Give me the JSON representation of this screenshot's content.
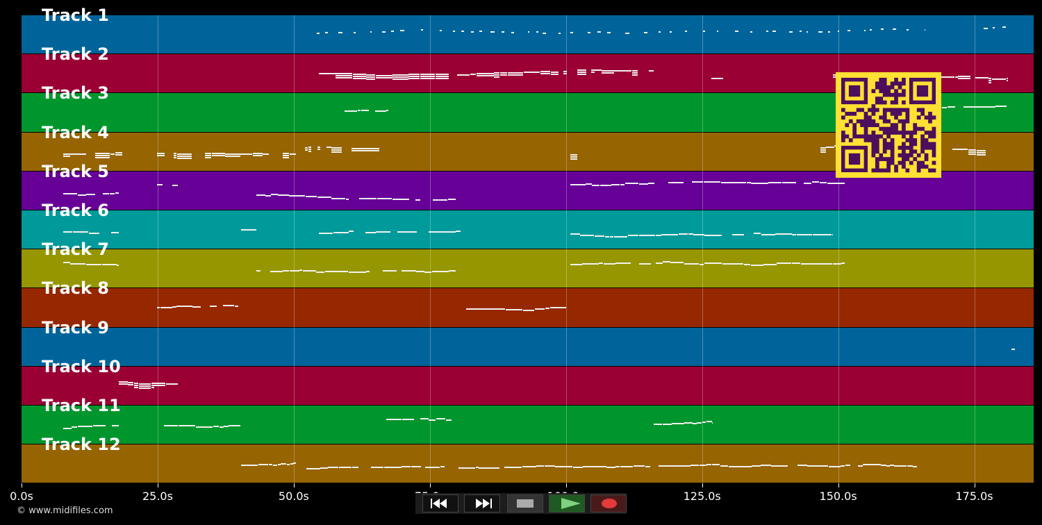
{
  "tracks": [
    {
      "label": "Track 1",
      "color": "#00649a"
    },
    {
      "label": "Track 2",
      "color": "#9a0034"
    },
    {
      "label": "Track 3",
      "color": "#00962d"
    },
    {
      "label": "Track 4",
      "color": "#966400"
    },
    {
      "label": "Track 5",
      "color": "#660096"
    },
    {
      "label": "Track 6",
      "color": "#009a9a"
    },
    {
      "label": "Track 7",
      "color": "#969600"
    },
    {
      "label": "Track 8",
      "color": "#962800"
    },
    {
      "label": "Track 9",
      "color": "#00649a"
    },
    {
      "label": "Track 10",
      "color": "#9a0034"
    },
    {
      "label": "Track 11",
      "color": "#00962d"
    },
    {
      "label": "Track 12",
      "color": "#966400"
    }
  ],
  "timeline": {
    "ticks": [
      "0.0s",
      "25.0s",
      "50.0s",
      "75.0s",
      "100.0s",
      "125.0s",
      "150.0s",
      "175.0s"
    ],
    "tick_seconds": [
      0,
      25,
      50,
      75,
      100,
      125,
      150,
      175
    ],
    "max_seconds": 185.9
  },
  "copyright": "© www.midifiles.com",
  "transport": {
    "rewind_icon": "rewind-icon",
    "forward_icon": "fast-forward-icon",
    "stop_icon": "stop-icon",
    "play_icon": "play-icon",
    "record_icon": "record-icon"
  },
  "qr_code": {
    "icon": "qr-code-icon"
  }
}
